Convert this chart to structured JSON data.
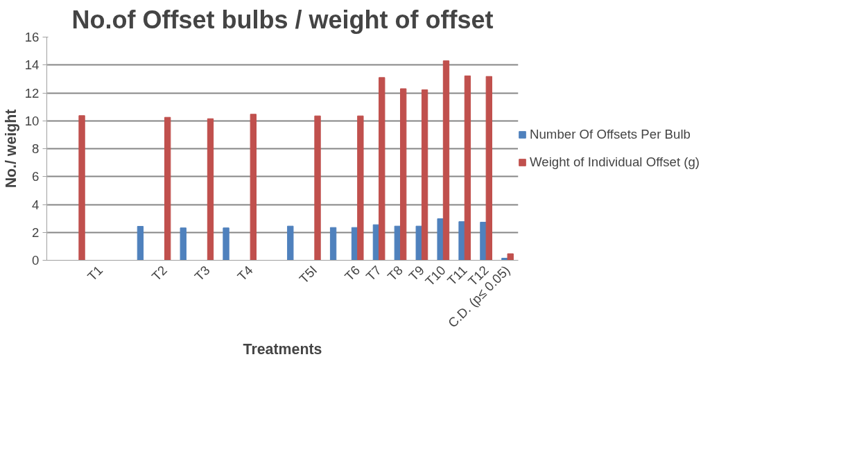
{
  "chart_data": {
    "type": "bar",
    "title": "No.of Offset bulbs / weight of offset",
    "xlabel": "Treatments",
    "ylabel": "No./ weight",
    "categories": [
      null,
      null,
      "T1",
      null,
      null,
      "T2",
      null,
      "T3",
      null,
      "T4",
      null,
      null,
      "T5I",
      null,
      "T6",
      "T7",
      "T8",
      "T9",
      "T10",
      "T11",
      "T12",
      "C.D. (p≤ 0.05)"
    ],
    "series": [
      {
        "name": "Number Of Offsets Per Bulb",
        "color": "#4f81bd",
        "values": [
          null,
          null,
          null,
          null,
          2.43,
          null,
          2.32,
          null,
          2.32,
          null,
          null,
          2.45,
          null,
          2.35,
          2.35,
          2.55,
          2.45,
          2.45,
          2.98,
          2.77,
          2.73,
          0.15
        ]
      },
      {
        "name": "Weight of Individual Offset (g)",
        "color": "#c0504d",
        "values": [
          null,
          10.37,
          null,
          null,
          null,
          10.25,
          null,
          10.15,
          null,
          10.47,
          null,
          null,
          10.35,
          null,
          10.35,
          13.1,
          12.3,
          12.22,
          14.3,
          13.22,
          13.18,
          0.47
        ]
      }
    ],
    "ylim": [
      0,
      16
    ],
    "yticks": [
      0,
      2,
      4,
      6,
      8,
      10,
      12,
      14,
      16
    ],
    "grid": "y",
    "legend": "right"
  }
}
